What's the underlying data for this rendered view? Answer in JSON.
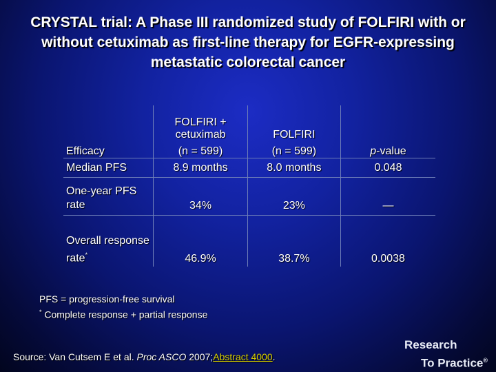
{
  "slide": {
    "title": "CRYSTAL trial: A Phase III randomized study of FOLFIRI with or without cetuximab as first-line therapy for EGFR-expressing metastatic colorectal cancer"
  },
  "table": {
    "header": {
      "col0": "Efficacy",
      "col1_line1": "FOLFIRI +",
      "col1_line2": "cetuximab",
      "col1_line3": "(n = 599)",
      "col2_line1": "FOLFIRI",
      "col2_line2": "(n = 599)",
      "col3_italic": "p",
      "col3_rest": "-value"
    },
    "rows": [
      {
        "label": "Median PFS",
        "cetuximab": "8.9 months",
        "folfiri": "8.0 months",
        "p": "0.048"
      },
      {
        "label": "One-year PFS rate",
        "cetuximab": "34%",
        "folfiri": "23%",
        "p": "—"
      },
      {
        "label": "Overall response rate",
        "label_sup": "*",
        "cetuximab": "46.9%",
        "folfiri": "38.7%",
        "p": "0.0038"
      }
    ]
  },
  "footnotes": {
    "pfs": "PFS = progression-free survival",
    "star_mark": "*",
    "star_text": " Complete response + partial response"
  },
  "source": {
    "prefix": "Source: Van Cutsem E et al. ",
    "journal": "Proc ASCO",
    "year": " 2007;",
    "abstract": "Abstract 4000",
    "end": "."
  },
  "logo": {
    "line1": "Research",
    "line2": "To Practice",
    "mark": "®"
  },
  "colors": {
    "background": "#1222a0",
    "text": "#ffffff",
    "link": "#d8d000",
    "rule": "#6f7fb8"
  }
}
